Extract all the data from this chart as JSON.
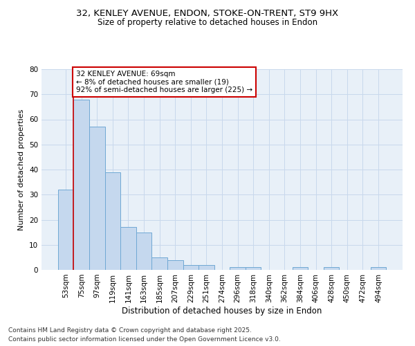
{
  "title_line1": "32, KENLEY AVENUE, ENDON, STOKE-ON-TRENT, ST9 9HX",
  "title_line2": "Size of property relative to detached houses in Endon",
  "xlabel": "Distribution of detached houses by size in Endon",
  "ylabel": "Number of detached properties",
  "categories": [
    "53sqm",
    "75sqm",
    "97sqm",
    "119sqm",
    "141sqm",
    "163sqm",
    "185sqm",
    "207sqm",
    "229sqm",
    "251sqm",
    "274sqm",
    "296sqm",
    "318sqm",
    "340sqm",
    "362sqm",
    "384sqm",
    "406sqm",
    "428sqm",
    "450sqm",
    "472sqm",
    "494sqm"
  ],
  "values": [
    32,
    68,
    57,
    39,
    17,
    15,
    5,
    4,
    2,
    2,
    0,
    1,
    1,
    0,
    0,
    1,
    0,
    1,
    0,
    0,
    1
  ],
  "bar_color": "#c5d8ee",
  "bar_edge_color": "#6fa8d4",
  "bar_linewidth": 0.7,
  "grid_color": "#c8d8ec",
  "background_color": "#e8f0f8",
  "annotation_text": "32 KENLEY AVENUE: 69sqm\n← 8% of detached houses are smaller (19)\n92% of semi-detached houses are larger (225) →",
  "red_line_color": "#cc0000",
  "ylim": [
    0,
    80
  ],
  "yticks": [
    0,
    10,
    20,
    30,
    40,
    50,
    60,
    70,
    80
  ],
  "title1_fontsize": 9.5,
  "title2_fontsize": 8.5,
  "xlabel_fontsize": 8.5,
  "ylabel_fontsize": 8,
  "tick_fontsize": 7.5,
  "annotation_fontsize": 7.5,
  "footer_line1": "Contains HM Land Registry data © Crown copyright and database right 2025.",
  "footer_line2": "Contains public sector information licensed under the Open Government Licence v3.0.",
  "footer_fontsize": 6.5
}
